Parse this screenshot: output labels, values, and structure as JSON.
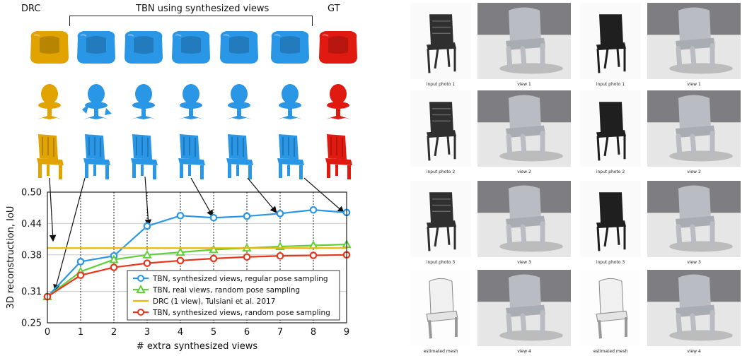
{
  "headers": {
    "drc": "DRC",
    "tbn": "TBN using synthesized views",
    "gt": "GT"
  },
  "renders": {
    "rows": [
      {
        "shape": "armchair"
      },
      {
        "shape": "swivel-chair"
      },
      {
        "shape": "side-chair"
      }
    ],
    "columns": [
      {
        "kind": "drc",
        "color": "#e0a300"
      },
      {
        "kind": "tbn",
        "color": "#2a96e6"
      },
      {
        "kind": "tbn",
        "color": "#2a96e6"
      },
      {
        "kind": "tbn",
        "color": "#2a96e6"
      },
      {
        "kind": "tbn",
        "color": "#2a96e6"
      },
      {
        "kind": "tbn",
        "color": "#2a96e6"
      },
      {
        "kind": "tbn",
        "color": "#2a96e6"
      },
      {
        "kind": "gt",
        "color": "#e01a10"
      }
    ]
  },
  "chart_data": {
    "type": "line",
    "xlabel": "# extra synthesized views",
    "ylabel": "3D reconstruction, IoU",
    "x": [
      0,
      1,
      2,
      3,
      4,
      5,
      6,
      7,
      8,
      9
    ],
    "xticks": [
      "0",
      "1",
      "2",
      "3",
      "4",
      "5",
      "6",
      "7",
      "8",
      "9"
    ],
    "yticks": [
      "0.25",
      "0.31",
      "0.38",
      "0.44",
      "0.50"
    ],
    "ylim": [
      0.25,
      0.5
    ],
    "xlim": [
      0,
      9
    ],
    "grid": "dotted vertical lines at x=1..8, solid horizontal gridlines at y ticks",
    "legend_position": "bottom-right",
    "series": [
      {
        "name": "TBN, synthesized views, regular pose sampling",
        "color": "#2a96e6",
        "marker": "circle",
        "values": [
          0.3,
          0.367,
          0.378,
          0.435,
          0.455,
          0.451,
          0.454,
          0.459,
          0.466,
          0.461
        ]
      },
      {
        "name": "TBN, real views, random pose sampling",
        "color": "#5fcf3a",
        "marker": "triangle",
        "values": [
          0.3,
          0.348,
          0.371,
          0.38,
          0.385,
          0.39,
          0.393,
          0.396,
          0.398,
          0.4
        ]
      },
      {
        "name": "DRC (1 view), Tulsiani et al. 2017",
        "color": "#f0b400",
        "marker": "none",
        "values": [
          0.393,
          0.393,
          0.393,
          0.393,
          0.393,
          0.393,
          0.393,
          0.393,
          0.393,
          0.393
        ]
      },
      {
        "name": "TBN, synthesized views, random pose sampling",
        "color": "#e8361e",
        "marker": "circle",
        "values": [
          0.3,
          0.341,
          0.356,
          0.364,
          0.369,
          0.373,
          0.376,
          0.378,
          0.379,
          0.38
        ]
      }
    ]
  },
  "photos": {
    "captions": [
      [
        "input photo 1",
        "view 1",
        "input photo 1",
        "view 1"
      ],
      [
        "input photo 2",
        "view 2",
        "input photo 2",
        "view 2"
      ],
      [
        "input photo 3",
        "view 3",
        "input photo 3",
        "view 3"
      ],
      [
        "estimated mesh",
        "view 4",
        "estimated mesh",
        "view 4"
      ]
    ],
    "colors": {
      "plastic_chair": "#2f2f2f",
      "folding_chair": "#1f1f1f",
      "clay_chair": "#b9bcc2",
      "table_top": "#e6e6e6",
      "sky": "#7e7e82"
    }
  }
}
